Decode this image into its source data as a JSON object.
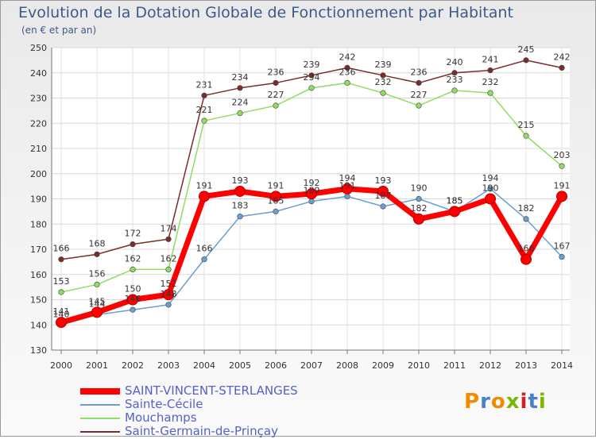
{
  "title": "Evolution de la Dotation Globale de Fonctionnement par Habitant",
  "subtitle": "(en € et par an)",
  "brand": "Proxiti",
  "chart_data": {
    "type": "line",
    "categories": [
      "2000",
      "2001",
      "2002",
      "2003",
      "2004",
      "2005",
      "2006",
      "2007",
      "2008",
      "2009",
      "2010",
      "2011",
      "2012",
      "2013",
      "2014"
    ],
    "ylim": [
      130,
      250
    ],
    "yticks": [
      130,
      140,
      150,
      160,
      170,
      180,
      190,
      200,
      210,
      220,
      230,
      240,
      250
    ],
    "grid": true,
    "legend_position": "bottom-left",
    "series": [
      {
        "name": "SAINT-VINCENT-STERLANGES",
        "color": "#ff0000",
        "values": [
          141,
          145,
          150,
          152,
          191,
          193,
          191,
          192,
          194,
          193,
          182,
          185,
          190,
          166,
          191
        ]
      },
      {
        "name": "Sainte-Cécile",
        "color": "#6a9ed0",
        "values": [
          140,
          144,
          146,
          148,
          166,
          183,
          185,
          189,
          191,
          187,
          190,
          185,
          194,
          182,
          167
        ]
      },
      {
        "name": "Mouchamps",
        "color": "#90dd60",
        "values": [
          153,
          156,
          162,
          162,
          221,
          224,
          227,
          234,
          236,
          232,
          227,
          233,
          232,
          215,
          203
        ]
      },
      {
        "name": "Saint-Germain-de-Prinçay",
        "color": "#7a2c2c",
        "values": [
          166,
          168,
          172,
          174,
          231,
          234,
          236,
          239,
          242,
          239,
          236,
          240,
          241,
          245,
          242
        ]
      }
    ]
  }
}
